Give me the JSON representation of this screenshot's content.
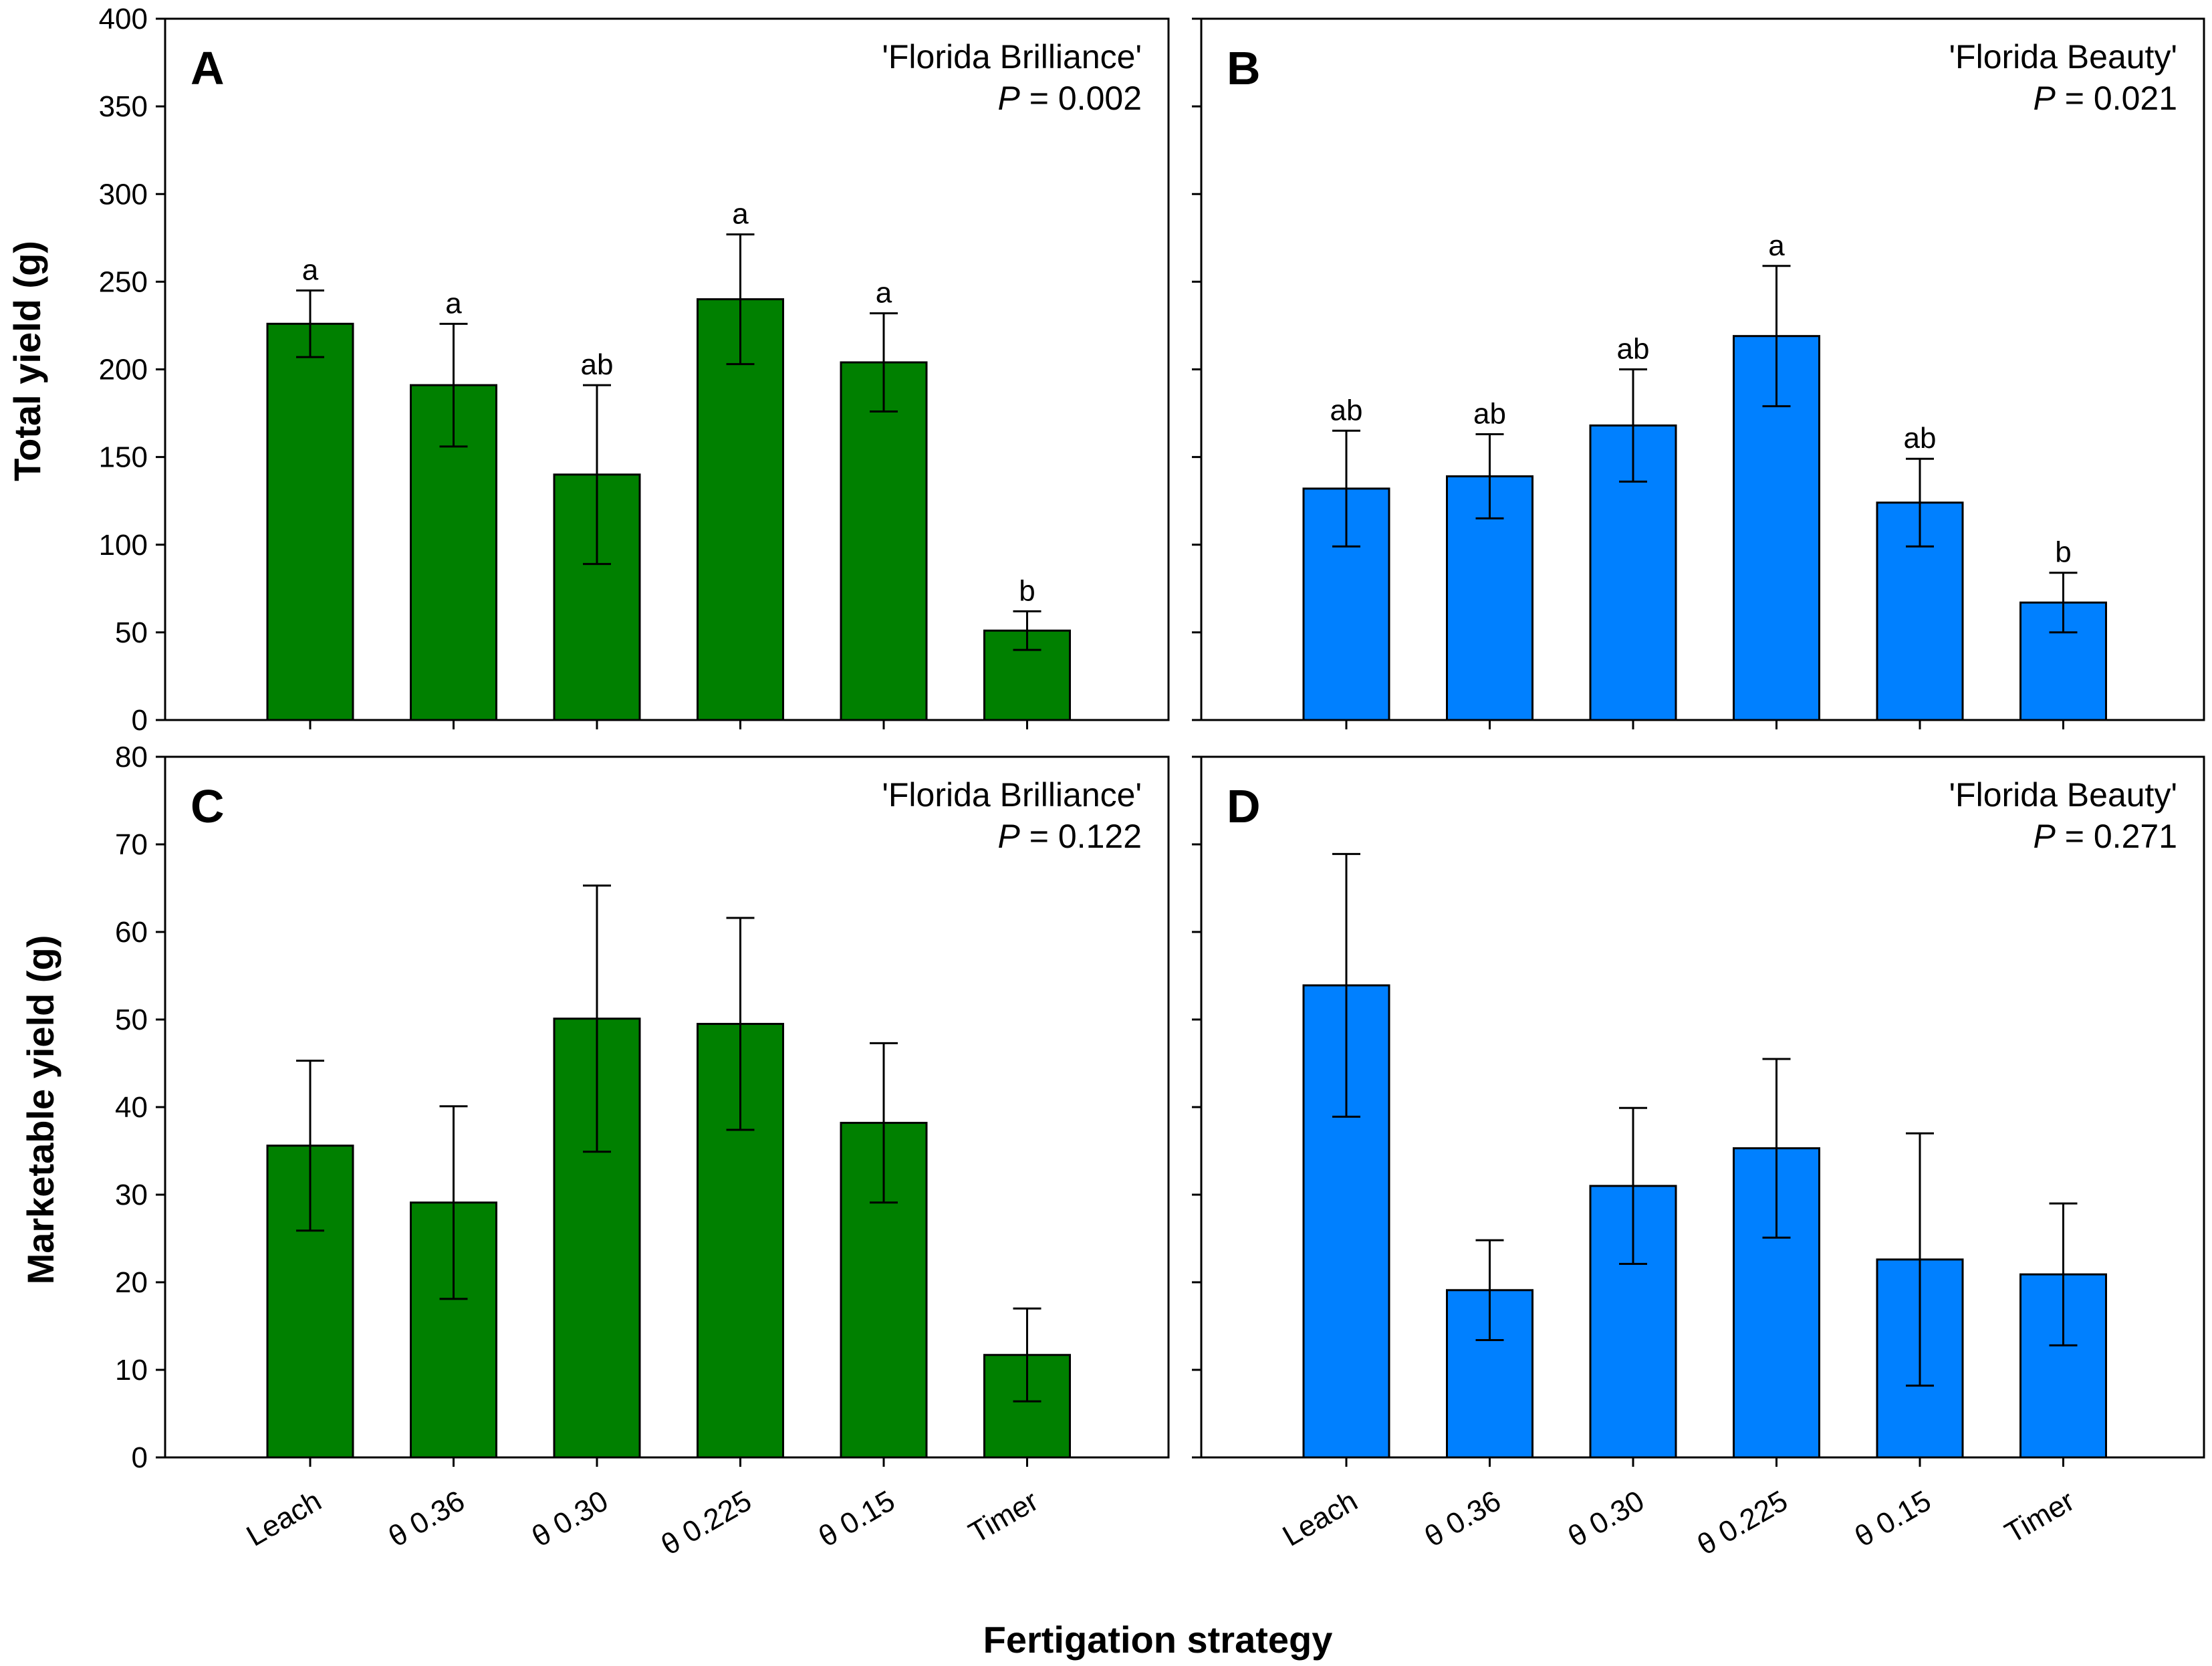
{
  "figure": {
    "x_axis_title": "Fertigation strategy",
    "y_axis_title_top": "Total yield (g)",
    "y_axis_title_bottom": "Marketable yield (g)",
    "colors": {
      "brilliance": "#008000",
      "beauty": "#0080ff"
    }
  },
  "chart_data": [
    {
      "type": "bar",
      "panel": "A",
      "title": "'Florida Brilliance'",
      "p_label": "P",
      "p_value": "= 0.002",
      "xlabel": "",
      "ylabel": "Total yield (g)",
      "categories": [
        "Leach",
        "θ 0.36",
        "θ 0.30",
        "θ 0.225",
        "θ 0.15",
        "Timer"
      ],
      "values": [
        226,
        191,
        140,
        240,
        204,
        51
      ],
      "errors": [
        19,
        35,
        51,
        37,
        28,
        11
      ],
      "letters": [
        "a",
        "a",
        "ab",
        "a",
        "a",
        "b"
      ],
      "ylim": [
        0,
        400
      ],
      "yticks": [
        0,
        50,
        100,
        150,
        200,
        250,
        300,
        350,
        400
      ],
      "color": "#008000"
    },
    {
      "type": "bar",
      "panel": "B",
      "title": "'Florida Beauty'",
      "p_label": "P",
      "p_value": "= 0.021",
      "xlabel": "",
      "ylabel": "Total yield (g)",
      "categories": [
        "Leach",
        "θ 0.36",
        "θ 0.30",
        "θ 0.225",
        "θ 0.15",
        "Timer"
      ],
      "values": [
        132,
        139,
        168,
        219,
        124,
        67
      ],
      "errors": [
        33,
        24,
        32,
        40,
        25,
        17
      ],
      "letters": [
        "ab",
        "ab",
        "ab",
        "a",
        "ab",
        "b"
      ],
      "ylim": [
        0,
        400
      ],
      "yticks": [
        0,
        50,
        100,
        150,
        200,
        250,
        300,
        350,
        400
      ],
      "color": "#0080ff"
    },
    {
      "type": "bar",
      "panel": "C",
      "title": "'Florida Brilliance'",
      "p_label": "P",
      "p_value": "= 0.122",
      "xlabel": "Fertigation strategy",
      "ylabel": "Marketable yield (g)",
      "categories": [
        "Leach",
        "θ 0.36",
        "θ 0.30",
        "θ 0.225",
        "θ 0.15",
        "Timer"
      ],
      "values": [
        35.6,
        29.1,
        50.1,
        49.5,
        38.2,
        11.7
      ],
      "errors": [
        9.7,
        11.0,
        15.2,
        12.1,
        9.1,
        5.3
      ],
      "letters": [],
      "ylim": [
        0,
        80
      ],
      "yticks": [
        0,
        10,
        20,
        30,
        40,
        50,
        60,
        70,
        80
      ],
      "color": "#008000"
    },
    {
      "type": "bar",
      "panel": "D",
      "title": "'Florida Beauty'",
      "p_label": "P",
      "p_value": "= 0.271",
      "xlabel": "Fertigation strategy",
      "ylabel": "Marketable yield (g)",
      "categories": [
        "Leach",
        "θ 0.36",
        "θ 0.30",
        "θ 0.225",
        "θ 0.15",
        "Timer"
      ],
      "values": [
        53.9,
        19.1,
        31.0,
        35.3,
        22.6,
        20.9
      ],
      "errors": [
        15.0,
        5.7,
        8.9,
        10.2,
        14.4,
        8.1
      ],
      "letters": [],
      "ylim": [
        0,
        80
      ],
      "yticks": [
        0,
        10,
        20,
        30,
        40,
        50,
        60,
        70,
        80
      ],
      "color": "#0080ff"
    }
  ]
}
